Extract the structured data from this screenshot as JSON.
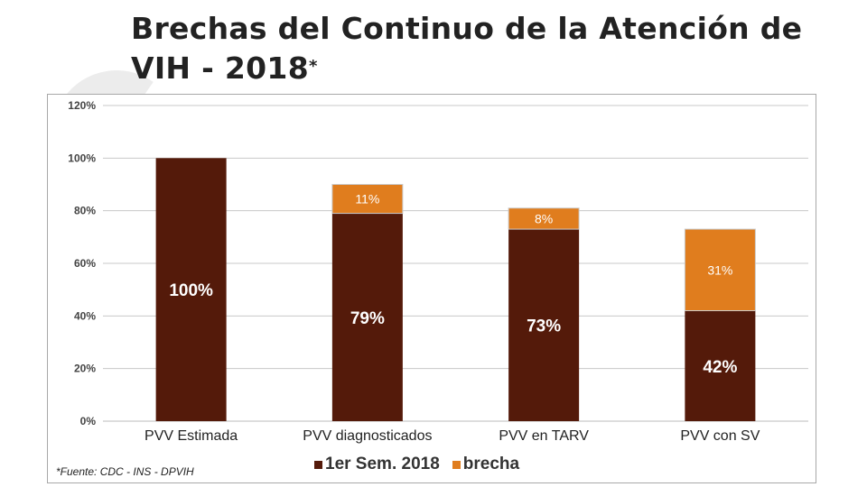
{
  "title": "Brechas del Continuo de la Atención de VIH - 2018",
  "title_mark": "*",
  "source": "*Fuente: CDC - INS - DPVIH",
  "chart_data": {
    "type": "bar",
    "stacked": true,
    "categories": [
      "PVV Estimada",
      "PVV diagnosticados",
      "PVV en TARV",
      "PVV con SV"
    ],
    "series": [
      {
        "name": "1er Sem. 2018",
        "values": [
          100,
          79,
          73,
          42
        ],
        "labels": [
          "100%",
          "79%",
          "73%",
          "42%"
        ],
        "color": "#541a0a"
      },
      {
        "name": "brecha",
        "values": [
          0,
          11,
          8,
          31
        ],
        "labels": [
          "",
          "11%",
          "8%",
          "31%"
        ],
        "color": "#e07d1e"
      }
    ],
    "ylim": [
      0,
      120
    ],
    "yticks": [
      0,
      20,
      40,
      60,
      80,
      100,
      120
    ],
    "ytick_labels": [
      "0%",
      "20%",
      "40%",
      "60%",
      "80%",
      "100%",
      "120%"
    ],
    "grid": true,
    "legend_position": "bottom"
  }
}
